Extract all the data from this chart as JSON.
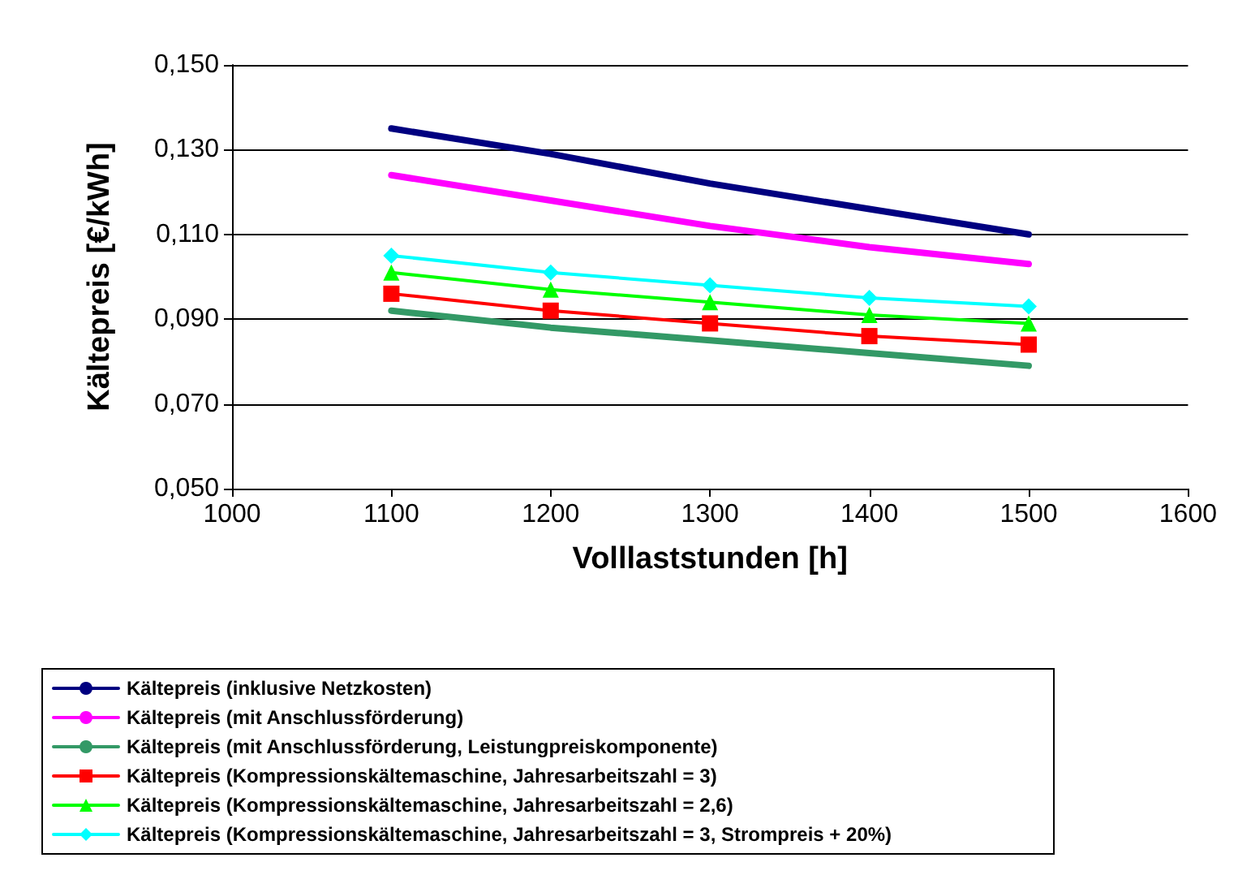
{
  "chart_data": {
    "type": "line",
    "xlabel": "Volllaststunden [h]",
    "ylabel": "Kältepreis [€/kWh]",
    "x": [
      1100,
      1200,
      1300,
      1400,
      1500
    ],
    "xlim": [
      1000,
      1600
    ],
    "xticks": [
      1000,
      1100,
      1200,
      1300,
      1400,
      1500,
      1600
    ],
    "ylim": [
      0.05,
      0.15
    ],
    "yticks": [
      {
        "value": 0.05,
        "label": "0,050"
      },
      {
        "value": 0.07,
        "label": "0,070"
      },
      {
        "value": 0.09,
        "label": "0,090"
      },
      {
        "value": 0.11,
        "label": "0,110"
      },
      {
        "value": 0.13,
        "label": "0,130"
      },
      {
        "value": 0.15,
        "label": "0,150"
      }
    ],
    "grid": "y",
    "legend": "bottom",
    "line_style": "solid",
    "series": [
      {
        "name": "Kältepreis (inklusive Netzkosten)",
        "color": "#000080",
        "marker": "none",
        "values": [
          0.135,
          0.129,
          0.122,
          0.116,
          0.11
        ]
      },
      {
        "name": "Kältepreis (mit Anschlussförderung)",
        "color": "#ff00ff",
        "marker": "none",
        "values": [
          0.124,
          0.118,
          0.112,
          0.107,
          0.103
        ]
      },
      {
        "name": "Kältepreis (mit Anschlussförderung, Leistungpreiskomponente)",
        "color": "#339966",
        "marker": "none",
        "values": [
          0.092,
          0.088,
          0.085,
          0.082,
          0.079
        ]
      },
      {
        "name": "Kältepreis (Kompressionskältemaschine, Jahresarbeitszahl = 3)",
        "color": "#ff0000",
        "marker": "square",
        "values": [
          0.096,
          0.092,
          0.089,
          0.086,
          0.084
        ]
      },
      {
        "name": "Kältepreis (Kompressionskältemaschine, Jahresarbeitszahl = 2,6)",
        "color": "#00ff00",
        "marker": "triangle",
        "values": [
          0.101,
          0.097,
          0.094,
          0.091,
          0.089
        ]
      },
      {
        "name": "Kältepreis (Kompressionskältemaschine, Jahresarbeitszahl = 3, Strompreis + 20%)",
        "color": "#00ffff",
        "marker": "diamond",
        "values": [
          0.105,
          0.101,
          0.098,
          0.095,
          0.093
        ]
      }
    ]
  }
}
